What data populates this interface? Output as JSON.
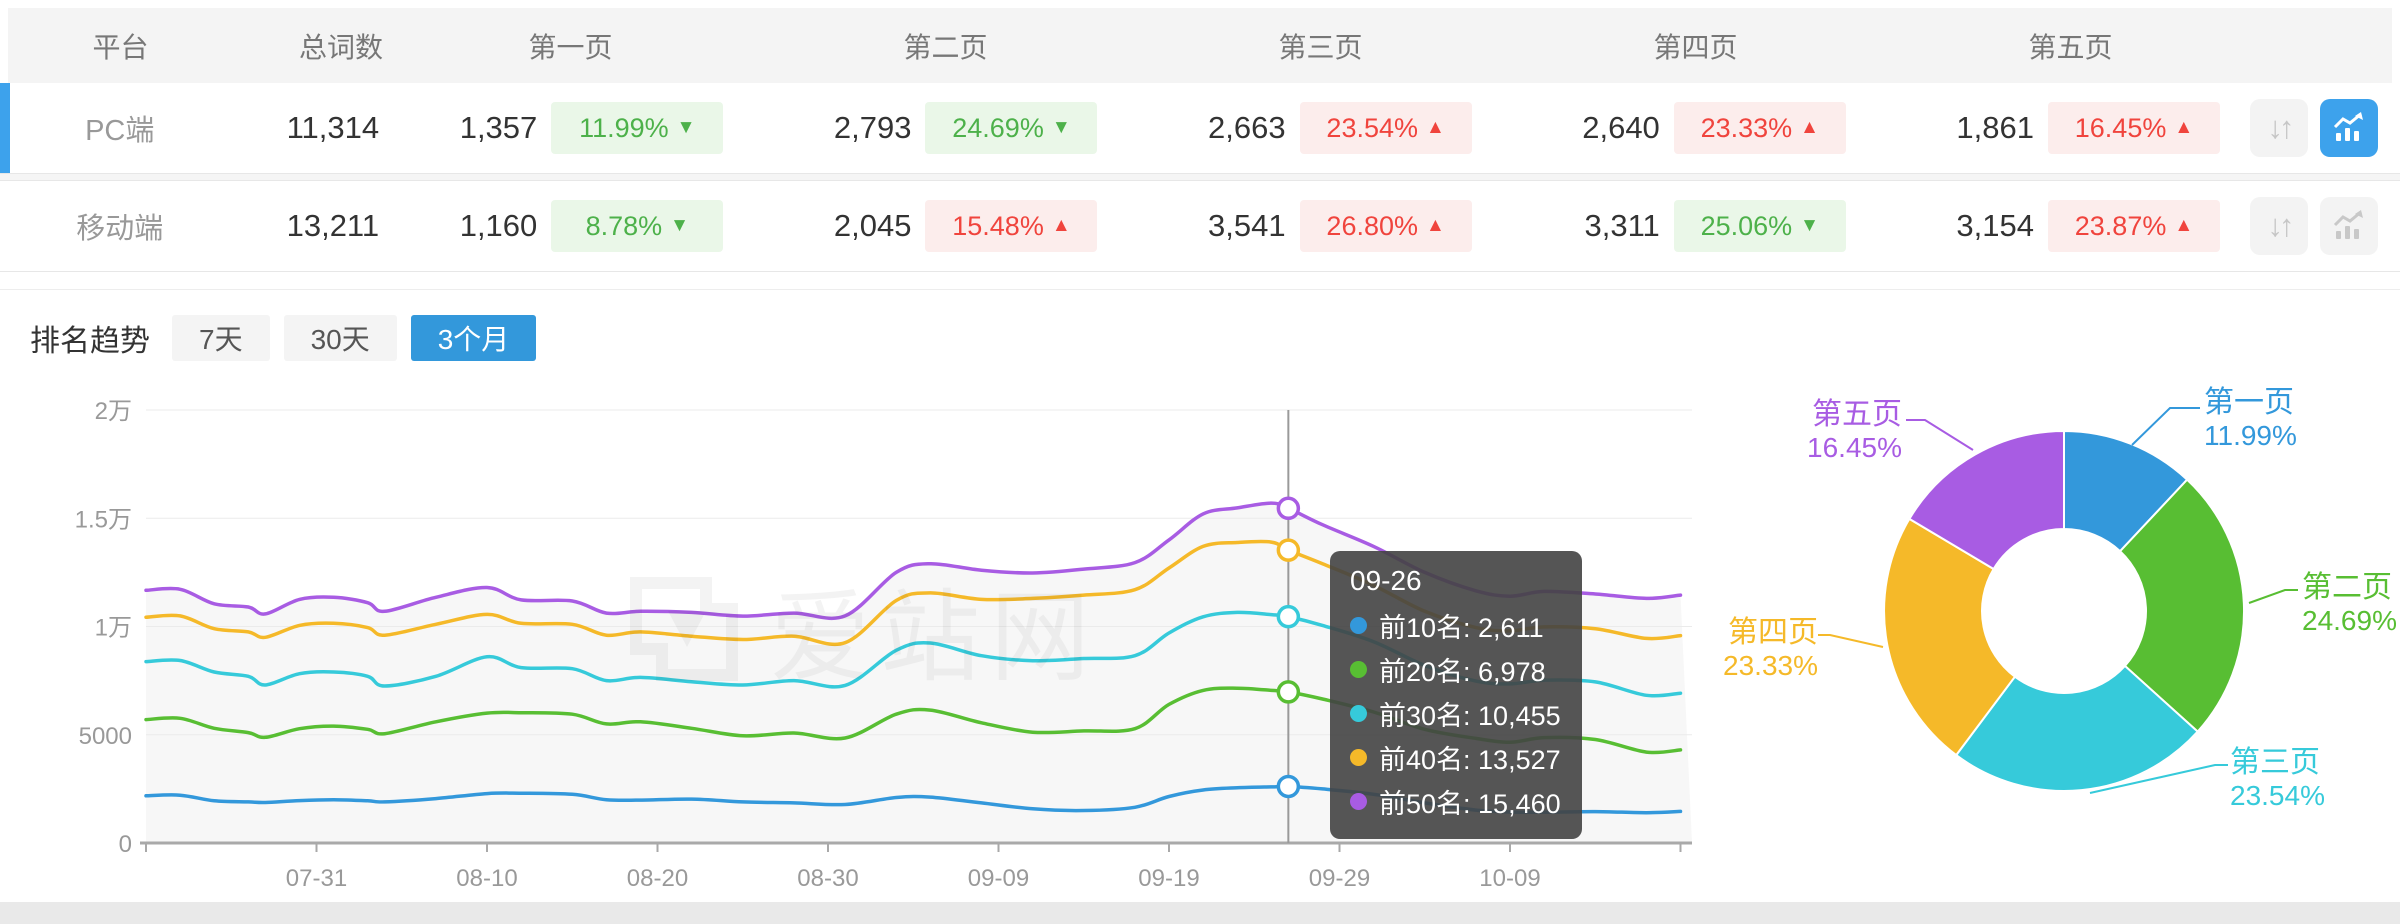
{
  "colors": {
    "accent": "#3398DB",
    "accent_light": "#3DA2EC",
    "good_text": "#4DB14A",
    "good_bg": "#EAF7E8",
    "bad_text": "#F0443D",
    "bad_bg": "#FCEDEC"
  },
  "table": {
    "headers": [
      "平台",
      "总词数",
      "第一页",
      "第二页",
      "第三页",
      "第四页",
      "第五页"
    ],
    "rows": [
      {
        "platform": "PC端",
        "total": "11,314",
        "active": true,
        "pages": [
          {
            "count": "1,357",
            "pct": "11.99%",
            "arrow": "▼",
            "state": "good"
          },
          {
            "count": "2,793",
            "pct": "24.69%",
            "arrow": "▼",
            "state": "good"
          },
          {
            "count": "2,663",
            "pct": "23.54%",
            "arrow": "▲",
            "state": "bad"
          },
          {
            "count": "2,640",
            "pct": "23.33%",
            "arrow": "▲",
            "state": "bad"
          },
          {
            "count": "1,861",
            "pct": "16.45%",
            "arrow": "▲",
            "state": "bad"
          }
        ],
        "buttons": {
          "sort_active": false,
          "chart_active": true
        }
      },
      {
        "platform": "移动端",
        "total": "13,211",
        "active": false,
        "pages": [
          {
            "count": "1,160",
            "pct": "8.78%",
            "arrow": "▼",
            "state": "good"
          },
          {
            "count": "2,045",
            "pct": "15.48%",
            "arrow": "▲",
            "state": "bad"
          },
          {
            "count": "3,541",
            "pct": "26.80%",
            "arrow": "▲",
            "state": "bad"
          },
          {
            "count": "3,311",
            "pct": "25.06%",
            "arrow": "▼",
            "state": "good"
          },
          {
            "count": "3,154",
            "pct": "23.87%",
            "arrow": "▲",
            "state": "bad"
          }
        ],
        "buttons": {
          "sort_active": false,
          "chart_active": false
        }
      }
    ]
  },
  "trend": {
    "title": "排名趋势",
    "tabs": [
      {
        "label": "7天",
        "active": false
      },
      {
        "label": "30天",
        "active": false
      },
      {
        "label": "3个月",
        "active": true
      }
    ]
  },
  "watermark": {
    "text": "爱站网"
  },
  "tooltip": {
    "date": "09-26",
    "items": [
      {
        "text": "前10名: 2,611"
      },
      {
        "text": "前20名: 6,978"
      },
      {
        "text": "前30名: 10,455"
      },
      {
        "text": "前40名: 13,527"
      },
      {
        "text": "前50名: 15,460"
      }
    ]
  },
  "chart_data": [
    {
      "type": "line",
      "title": "排名趋势 (3个月)",
      "x_axis_start_date": "07-21",
      "x_range_days": [
        0,
        90
      ],
      "x_ticks": [
        {
          "day": 10,
          "label": "07-31"
        },
        {
          "day": 20,
          "label": "08-10"
        },
        {
          "day": 30,
          "label": "08-20"
        },
        {
          "day": 40,
          "label": "08-30"
        },
        {
          "day": 50,
          "label": "09-09"
        },
        {
          "day": 60,
          "label": "09-19"
        },
        {
          "day": 70,
          "label": "09-29"
        },
        {
          "day": 80,
          "label": "10-09"
        }
      ],
      "y_range": [
        0,
        20000
      ],
      "y_ticks": [
        {
          "value": 0,
          "label": "0"
        },
        {
          "value": 5000,
          "label": "5000"
        },
        {
          "value": 10000,
          "label": "1万"
        },
        {
          "value": 15000,
          "label": "1.5万"
        },
        {
          "value": 20000,
          "label": "2万"
        }
      ],
      "grid": true,
      "legend_position": "none",
      "crosshair": {
        "day": 67,
        "date": "09-26"
      },
      "series": [
        {
          "name": "前10名",
          "color": "#3398DB",
          "points": [
            [
              0,
              2180
            ],
            [
              2,
              2210
            ],
            [
              4,
              1950
            ],
            [
              6,
              1900
            ],
            [
              7,
              1870
            ],
            [
              9,
              1960
            ],
            [
              11,
              2000
            ],
            [
              13,
              1950
            ],
            [
              14,
              1900
            ],
            [
              17,
              2050
            ],
            [
              20,
              2280
            ],
            [
              22,
              2300
            ],
            [
              25,
              2250
            ],
            [
              27,
              2000
            ],
            [
              29,
              1980
            ],
            [
              32,
              2030
            ],
            [
              35,
              1900
            ],
            [
              38,
              1850
            ],
            [
              41,
              1780
            ],
            [
              44,
              2100
            ],
            [
              46,
              2120
            ],
            [
              49,
              1850
            ],
            [
              52,
              1580
            ],
            [
              55,
              1500
            ],
            [
              58,
              1650
            ],
            [
              60,
              2150
            ],
            [
              62,
              2450
            ],
            [
              64,
              2550
            ],
            [
              66,
              2590
            ],
            [
              67,
              2611
            ],
            [
              69,
              2500
            ],
            [
              72,
              2250
            ],
            [
              75,
              1850
            ],
            [
              78,
              1520
            ],
            [
              80,
              1430
            ],
            [
              82,
              1420
            ],
            [
              85,
              1450
            ],
            [
              88,
              1400
            ],
            [
              90,
              1460
            ]
          ]
        },
        {
          "name": "前20名",
          "color": "#58BE33",
          "points": [
            [
              0,
              5700
            ],
            [
              2,
              5760
            ],
            [
              4,
              5300
            ],
            [
              6,
              5100
            ],
            [
              7,
              4880
            ],
            [
              9,
              5280
            ],
            [
              11,
              5400
            ],
            [
              13,
              5250
            ],
            [
              14,
              5050
            ],
            [
              17,
              5600
            ],
            [
              20,
              6000
            ],
            [
              22,
              6020
            ],
            [
              25,
              5950
            ],
            [
              27,
              5500
            ],
            [
              29,
              5600
            ],
            [
              32,
              5300
            ],
            [
              35,
              4950
            ],
            [
              38,
              5080
            ],
            [
              41,
              4850
            ],
            [
              44,
              5950
            ],
            [
              46,
              6140
            ],
            [
              49,
              5550
            ],
            [
              52,
              5120
            ],
            [
              55,
              5180
            ],
            [
              58,
              5280
            ],
            [
              60,
              6400
            ],
            [
              62,
              7050
            ],
            [
              64,
              7150
            ],
            [
              66,
              7050
            ],
            [
              67,
              6978
            ],
            [
              69,
              6650
            ],
            [
              72,
              6050
            ],
            [
              75,
              5250
            ],
            [
              78,
              4830
            ],
            [
              80,
              4650
            ],
            [
              82,
              4870
            ],
            [
              85,
              4780
            ],
            [
              88,
              4200
            ],
            [
              90,
              4300
            ]
          ]
        },
        {
          "name": "前30名",
          "color": "#36CADA",
          "points": [
            [
              0,
              8380
            ],
            [
              2,
              8430
            ],
            [
              4,
              7900
            ],
            [
              6,
              7700
            ],
            [
              7,
              7300
            ],
            [
              9,
              7820
            ],
            [
              11,
              7900
            ],
            [
              13,
              7700
            ],
            [
              14,
              7250
            ],
            [
              17,
              7700
            ],
            [
              20,
              8600
            ],
            [
              22,
              8100
            ],
            [
              25,
              8050
            ],
            [
              27,
              7500
            ],
            [
              29,
              7650
            ],
            [
              32,
              7450
            ],
            [
              35,
              7300
            ],
            [
              38,
              7500
            ],
            [
              41,
              7280
            ],
            [
              44,
              8900
            ],
            [
              46,
              9240
            ],
            [
              49,
              8650
            ],
            [
              52,
              8420
            ],
            [
              55,
              8520
            ],
            [
              58,
              8650
            ],
            [
              60,
              9700
            ],
            [
              62,
              10450
            ],
            [
              64,
              10650
            ],
            [
              66,
              10550
            ],
            [
              67,
              10455
            ],
            [
              69,
              10050
            ],
            [
              72,
              9300
            ],
            [
              75,
              8200
            ],
            [
              78,
              7480
            ],
            [
              80,
              7350
            ],
            [
              82,
              7520
            ],
            [
              85,
              7440
            ],
            [
              88,
              6820
            ],
            [
              90,
              6920
            ]
          ]
        },
        {
          "name": "前40名",
          "color": "#F5B929",
          "points": [
            [
              0,
              10430
            ],
            [
              2,
              10490
            ],
            [
              4,
              9900
            ],
            [
              6,
              9750
            ],
            [
              7,
              9500
            ],
            [
              9,
              10050
            ],
            [
              11,
              10150
            ],
            [
              13,
              9950
            ],
            [
              14,
              9600
            ],
            [
              17,
              10100
            ],
            [
              20,
              10560
            ],
            [
              22,
              10150
            ],
            [
              25,
              10100
            ],
            [
              27,
              9600
            ],
            [
              29,
              9750
            ],
            [
              32,
              9550
            ],
            [
              35,
              9400
            ],
            [
              38,
              9550
            ],
            [
              41,
              9250
            ],
            [
              44,
              11200
            ],
            [
              46,
              11550
            ],
            [
              49,
              11250
            ],
            [
              52,
              11300
            ],
            [
              55,
              11450
            ],
            [
              58,
              11700
            ],
            [
              60,
              12700
            ],
            [
              62,
              13700
            ],
            [
              64,
              13880
            ],
            [
              66,
              13900
            ],
            [
              67,
              13527
            ],
            [
              69,
              12900
            ],
            [
              72,
              11900
            ],
            [
              75,
              10700
            ],
            [
              78,
              9950
            ],
            [
              80,
              9800
            ],
            [
              82,
              9980
            ],
            [
              85,
              9900
            ],
            [
              88,
              9450
            ],
            [
              90,
              9580
            ]
          ]
        },
        {
          "name": "前50名",
          "color": "#A85CE3",
          "points": [
            [
              0,
              11670
            ],
            [
              2,
              11720
            ],
            [
              4,
              11050
            ],
            [
              6,
              10900
            ],
            [
              7,
              10580
            ],
            [
              9,
              11250
            ],
            [
              11,
              11350
            ],
            [
              13,
              11100
            ],
            [
              14,
              10700
            ],
            [
              17,
              11350
            ],
            [
              20,
              11800
            ],
            [
              22,
              11230
            ],
            [
              25,
              11180
            ],
            [
              27,
              10620
            ],
            [
              29,
              10700
            ],
            [
              32,
              10650
            ],
            [
              35,
              10480
            ],
            [
              38,
              10620
            ],
            [
              41,
              10490
            ],
            [
              44,
              12500
            ],
            [
              46,
              12900
            ],
            [
              49,
              12600
            ],
            [
              52,
              12470
            ],
            [
              55,
              12650
            ],
            [
              58,
              12950
            ],
            [
              60,
              14000
            ],
            [
              62,
              15200
            ],
            [
              64,
              15480
            ],
            [
              66,
              15700
            ],
            [
              67,
              15460
            ],
            [
              69,
              14700
            ],
            [
              72,
              13700
            ],
            [
              75,
              12500
            ],
            [
              78,
              11650
            ],
            [
              80,
              11400
            ],
            [
              82,
              11620
            ],
            [
              85,
              11500
            ],
            [
              88,
              11300
            ],
            [
              90,
              11450
            ]
          ]
        }
      ]
    },
    {
      "type": "pie",
      "title": "页面分布 (PC端)",
      "donut": true,
      "segments": [
        {
          "label": "第一页",
          "value": 11.99,
          "pct_label": "11.99%",
          "color": "#3398DB"
        },
        {
          "label": "第二页",
          "value": 24.69,
          "pct_label": "24.69%",
          "color": "#58BE33"
        },
        {
          "label": "第三页",
          "value": 23.54,
          "pct_label": "23.54%",
          "color": "#36CADA"
        },
        {
          "label": "第四页",
          "value": 23.33,
          "pct_label": "23.33%",
          "color": "#F5B929"
        },
        {
          "label": "第五页",
          "value": 16.45,
          "pct_label": "16.45%",
          "color": "#A85CE3"
        }
      ]
    }
  ]
}
